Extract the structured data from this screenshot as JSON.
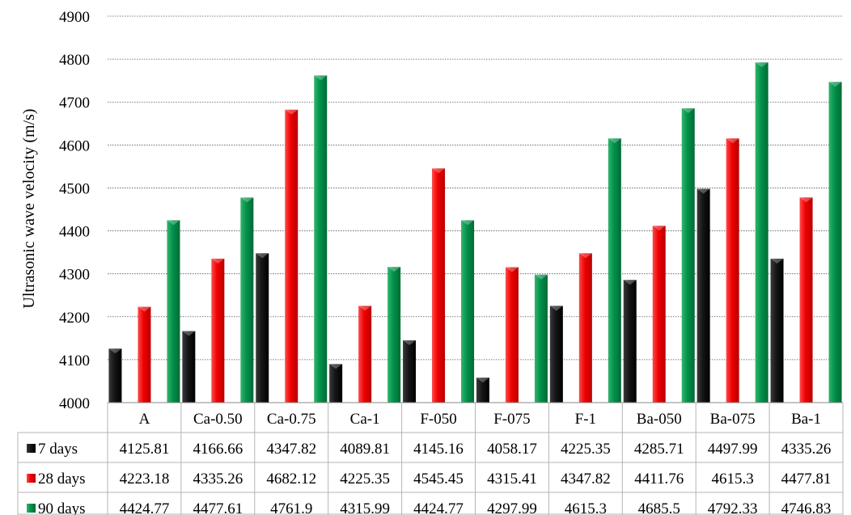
{
  "chart_data": {
    "type": "bar",
    "title": "",
    "xlabel": "",
    "ylabel": "Ultrasonic wave velocity (m/s)",
    "ylim": [
      4000,
      4900
    ],
    "yticks": [
      "4000",
      "4100",
      "4200",
      "4300",
      "4400",
      "4500",
      "4600",
      "4700",
      "4800",
      "4900"
    ],
    "grid": true,
    "legend": "data-table-left",
    "categories": [
      "A",
      "Ca-0.50",
      "Ca-0.75",
      "Ca-1",
      "F-050",
      "F-075",
      "F-1",
      "Ba-050",
      "Ba-075",
      "Ba-1"
    ],
    "series": [
      {
        "name": "7 days",
        "color": "#000000",
        "values": [
          4125.81,
          4166.66,
          4347.82,
          4089.81,
          4145.16,
          4058.17,
          4225.35,
          4285.71,
          4497.99,
          4335.26
        ],
        "labels": [
          "4125.81",
          "4166.66",
          "4347.82",
          "4089.81",
          "4145.16",
          "4058.17",
          "4225.35",
          "4285.71",
          "4497.99",
          "4335.26"
        ]
      },
      {
        "name": "28 days",
        "color": "#ee0000",
        "values": [
          4223.18,
          4335.26,
          4682.12,
          4225.35,
          4545.45,
          4315.41,
          4347.82,
          4411.76,
          4615.3,
          4477.81
        ],
        "labels": [
          "4223.18",
          "4335.26",
          "4682.12",
          "4225.35",
          "4545.45",
          "4315.41",
          "4347.82",
          "4411.76",
          "4615.3",
          "4477.81"
        ]
      },
      {
        "name": "90 days",
        "color": "#00914a",
        "values": [
          4424.77,
          4477.61,
          4761.9,
          4315.99,
          4424.77,
          4297.99,
          4615.3,
          4685.5,
          4792.33,
          4746.83
        ],
        "labels": [
          "4424.77",
          "4477.61",
          "4761.9",
          "4315.99",
          "4424.77",
          "4297.99",
          "4615.3",
          "4685.5",
          "4792.33",
          "4746.83"
        ]
      }
    ]
  }
}
